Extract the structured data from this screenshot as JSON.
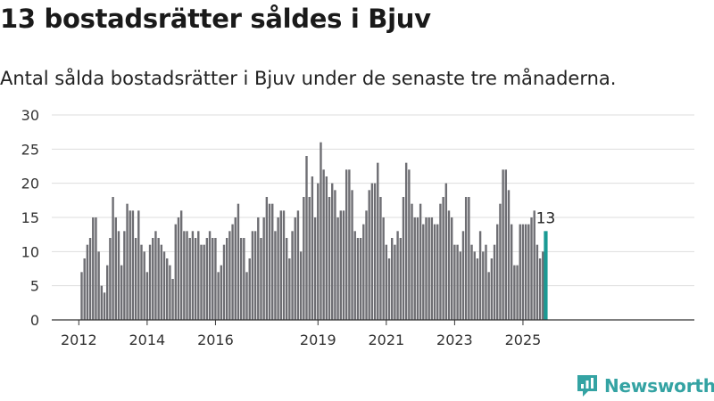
{
  "title": "13 bostadsrätter såldes i Bjuv",
  "subtitle": "Antal sålda bostadsrätter i Bjuv under de senaste tre månaderna.",
  "brand": {
    "name": "Newsworthy",
    "icon": "newsworthy-logo-icon"
  },
  "colors": {
    "bar": "#6e6e73",
    "highlight": "#1a9a94",
    "grid": "#dddddd",
    "axis": "#333333",
    "text": "#333333",
    "brand": "#34a3a3"
  },
  "chart_data": {
    "type": "bar",
    "xlabel": "",
    "ylabel": "",
    "ylim": [
      0,
      30
    ],
    "yticks": [
      0,
      5,
      10,
      15,
      20,
      25,
      30
    ],
    "grid": true,
    "x_start": "2012-02",
    "xticks": [
      {
        "label": "2012",
        "date": "2012-01"
      },
      {
        "label": "2014",
        "date": "2014-01"
      },
      {
        "label": "2016",
        "date": "2016-01"
      },
      {
        "label": "2019",
        "date": "2019-01"
      },
      {
        "label": "2021",
        "date": "2021-01"
      },
      {
        "label": "2023",
        "date": "2023-01"
      },
      {
        "label": "2025",
        "date": "2025-01"
      }
    ],
    "values": [
      7,
      9,
      11,
      12,
      15,
      15,
      10,
      5,
      4,
      8,
      12,
      18,
      15,
      13,
      8,
      13,
      17,
      16,
      16,
      12,
      16,
      11,
      10,
      7,
      11,
      12,
      13,
      12,
      11,
      10,
      9,
      8,
      6,
      14,
      15,
      16,
      13,
      13,
      12,
      13,
      12,
      13,
      11,
      11,
      12,
      13,
      12,
      12,
      7,
      8,
      11,
      12,
      13,
      14,
      15,
      17,
      12,
      12,
      7,
      9,
      13,
      13,
      15,
      12,
      15,
      18,
      17,
      17,
      13,
      15,
      16,
      16,
      12,
      9,
      13,
      15,
      16,
      10,
      18,
      24,
      18,
      21,
      15,
      20,
      26,
      22,
      21,
      18,
      20,
      19,
      15,
      16,
      16,
      22,
      22,
      19,
      13,
      12,
      12,
      14,
      16,
      19,
      20,
      20,
      23,
      18,
      15,
      11,
      9,
      12,
      11,
      13,
      12,
      18,
      23,
      22,
      17,
      15,
      15,
      17,
      14,
      15,
      15,
      15,
      14,
      14,
      17,
      18,
      20,
      16,
      15,
      11,
      11,
      10,
      13,
      18,
      18,
      11,
      10,
      9,
      13,
      10,
      11,
      7,
      9,
      11,
      14,
      17,
      22,
      22,
      19,
      14,
      8,
      8,
      14,
      14,
      14,
      14,
      15,
      16,
      11,
      9,
      10,
      13
    ],
    "highlight_last": true,
    "annotations": [
      {
        "label": "13"
      }
    ]
  }
}
